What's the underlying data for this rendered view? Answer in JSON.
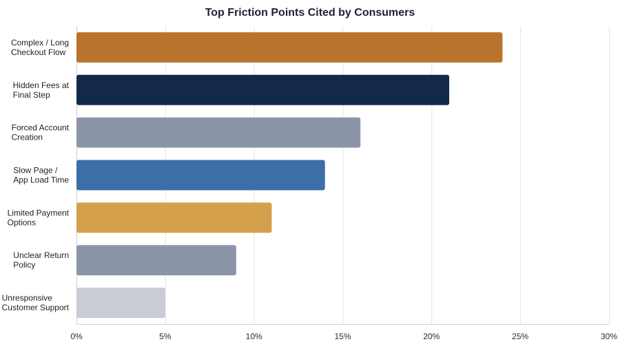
{
  "chart_data": {
    "type": "bar",
    "orientation": "horizontal",
    "title": "Top Friction Points Cited by Consumers",
    "xlabel": "",
    "ylabel": "",
    "xlim": [
      0,
      30
    ],
    "x_ticks": [
      0,
      5,
      10,
      15,
      20,
      25,
      30
    ],
    "tick_suffix": "%",
    "grid": true,
    "legend": "none",
    "categories": [
      "Complex / Long Checkout Flow",
      "Hidden Fees at Final Step",
      "Forced Account Creation",
      "Slow Page / App Load Time",
      "Limited Payment Options",
      "Unclear Return Policy",
      "Unresponsive Customer Support"
    ],
    "category_lines": [
      [
        "Complex / Long",
        "Checkout Flow"
      ],
      [
        "Hidden Fees at",
        "Final Step"
      ],
      [
        "Forced Account",
        "Creation"
      ],
      [
        "Slow Page /",
        "App Load Time"
      ],
      [
        "Limited Payment",
        "Options"
      ],
      [
        "Unclear Return",
        "Policy"
      ],
      [
        "Unresponsive",
        "Customer Support"
      ]
    ],
    "values": [
      24,
      21,
      16,
      14,
      11,
      9,
      5
    ],
    "colors": [
      "#b8732c",
      "#13294b",
      "#8c95a8",
      "#3d6ea8",
      "#d4a04c",
      "#8c95a8",
      "#c8ccd5"
    ]
  }
}
